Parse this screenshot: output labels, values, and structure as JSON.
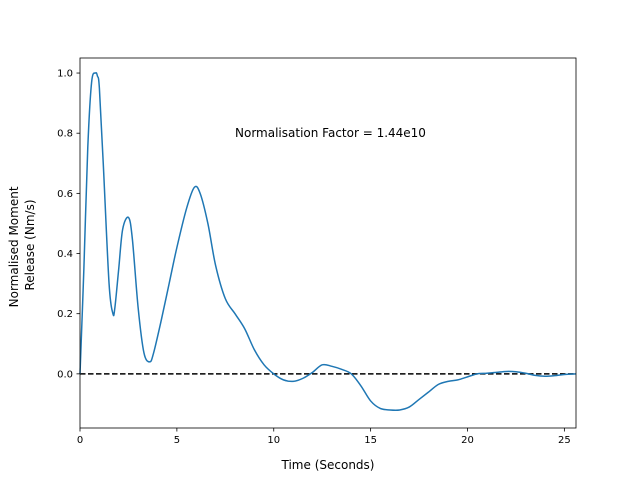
{
  "chart_data": {
    "type": "line",
    "title": "",
    "xlabel": "Time (Seconds)",
    "ylabel": [
      "Normalised Moment",
      "Release (Nm/s)"
    ],
    "xlim": [
      0,
      25.6
    ],
    "ylim": [
      -0.18,
      1.05
    ],
    "xticks": [
      0,
      5,
      10,
      15,
      20,
      25
    ],
    "xtick_labels": [
      "0",
      "5",
      "10",
      "15",
      "20",
      "25"
    ],
    "yticks": [
      0.0,
      0.2,
      0.4,
      0.6,
      0.8,
      1.0
    ],
    "ytick_labels": [
      "0.0",
      "0.2",
      "0.4",
      "0.6",
      "0.8",
      "1.0"
    ],
    "grid": false,
    "annotation": {
      "text": "Normalisation Factor = 1.44e10",
      "x": 8.0,
      "y": 0.82
    },
    "reference_line": {
      "y": 0.0,
      "style": "dashed",
      "color": "#000000"
    },
    "series": [
      {
        "color": "#1f77b4",
        "x": [
          0,
          0.2,
          0.4,
          0.6,
          0.8,
          0.9,
          1.0,
          1.2,
          1.5,
          1.7,
          1.8,
          2.0,
          2.2,
          2.5,
          2.7,
          3.0,
          3.3,
          3.6,
          3.8,
          4.2,
          4.6,
          5.0,
          5.5,
          5.9,
          6.2,
          6.6,
          7.0,
          7.5,
          8.0,
          8.5,
          9.0,
          9.5,
          10.0,
          10.5,
          11.0,
          11.5,
          12.0,
          12.5,
          13.0,
          13.5,
          14.0,
          14.5,
          15.0,
          15.5,
          16.0,
          16.5,
          17.0,
          17.5,
          18.0,
          18.5,
          19.0,
          19.5,
          20.0,
          20.5,
          21.0,
          21.5,
          22.0,
          22.5,
          23.0,
          23.5,
          24.0,
          24.5,
          25.0,
          25.6
        ],
        "y": [
          0.0,
          0.35,
          0.75,
          0.97,
          1.0,
          0.99,
          0.95,
          0.7,
          0.3,
          0.2,
          0.22,
          0.35,
          0.48,
          0.52,
          0.45,
          0.22,
          0.07,
          0.04,
          0.07,
          0.18,
          0.3,
          0.42,
          0.55,
          0.62,
          0.6,
          0.5,
          0.36,
          0.25,
          0.2,
          0.15,
          0.08,
          0.03,
          0.0,
          -0.02,
          -0.025,
          -0.015,
          0.005,
          0.03,
          0.025,
          0.015,
          0.0,
          -0.04,
          -0.09,
          -0.115,
          -0.12,
          -0.12,
          -0.11,
          -0.085,
          -0.06,
          -0.035,
          -0.025,
          -0.02,
          -0.01,
          0.0,
          0.002,
          0.005,
          0.008,
          0.007,
          0.002,
          -0.005,
          -0.008,
          -0.006,
          -0.002,
          0.0
        ]
      }
    ]
  }
}
